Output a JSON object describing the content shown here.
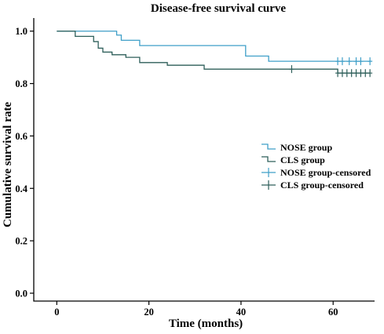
{
  "chart_data": {
    "type": "line",
    "chart_kind": "kaplan-meier step curve",
    "title": "Disease-free survival curve",
    "xlabel": "Time (months)",
    "ylabel": "Cumulative survival rate",
    "xlim": [
      -5,
      69
    ],
    "ylim": [
      -0.03,
      1.05
    ],
    "x_ticks": [
      0,
      20,
      40,
      60
    ],
    "x_tick_labels": [
      "0",
      "20",
      "40",
      "60"
    ],
    "y_ticks": [
      0.0,
      0.2,
      0.4,
      0.6,
      0.8,
      1.0
    ],
    "y_tick_labels": [
      "0.0",
      "0.2",
      "0.4",
      "0.6",
      "0.8",
      "1.0"
    ],
    "grid": false,
    "legend_position": "right-middle",
    "series": [
      {
        "name": "NOSE group",
        "color": "#3f9fc8",
        "steps": [
          [
            0,
            1.0
          ],
          [
            13,
            0.985
          ],
          [
            14,
            0.965
          ],
          [
            18,
            0.945
          ],
          [
            41,
            0.905
          ],
          [
            46,
            0.885
          ],
          [
            68,
            0.885
          ]
        ],
        "censored": [
          [
            61,
            0.885
          ],
          [
            62,
            0.885
          ],
          [
            63.5,
            0.885
          ],
          [
            65,
            0.885
          ],
          [
            66,
            0.885
          ],
          [
            68,
            0.885
          ]
        ]
      },
      {
        "name": "CLS group",
        "color": "#2e5f5a",
        "steps": [
          [
            0,
            1.0
          ],
          [
            4,
            0.98
          ],
          [
            8,
            0.96
          ],
          [
            9,
            0.935
          ],
          [
            10,
            0.92
          ],
          [
            12,
            0.91
          ],
          [
            15,
            0.9
          ],
          [
            18,
            0.88
          ],
          [
            24,
            0.87
          ],
          [
            32,
            0.855
          ],
          [
            61,
            0.84
          ],
          [
            68,
            0.84
          ]
        ],
        "censored": [
          [
            51,
            0.855
          ],
          [
            61,
            0.84
          ],
          [
            62,
            0.84
          ],
          [
            63,
            0.84
          ],
          [
            64,
            0.84
          ],
          [
            65,
            0.84
          ],
          [
            66,
            0.84
          ],
          [
            67,
            0.84
          ],
          [
            68,
            0.84
          ]
        ]
      }
    ],
    "legend": [
      {
        "label": "NOSE group",
        "kind": "step",
        "color": "#3f9fc8"
      },
      {
        "label": "CLS group",
        "kind": "step",
        "color": "#2e5f5a"
      },
      {
        "label": "NOSE group-censored",
        "kind": "cross",
        "color": "#3f9fc8"
      },
      {
        "label": "CLS group-censored",
        "kind": "cross",
        "color": "#2e5f5a"
      }
    ]
  }
}
